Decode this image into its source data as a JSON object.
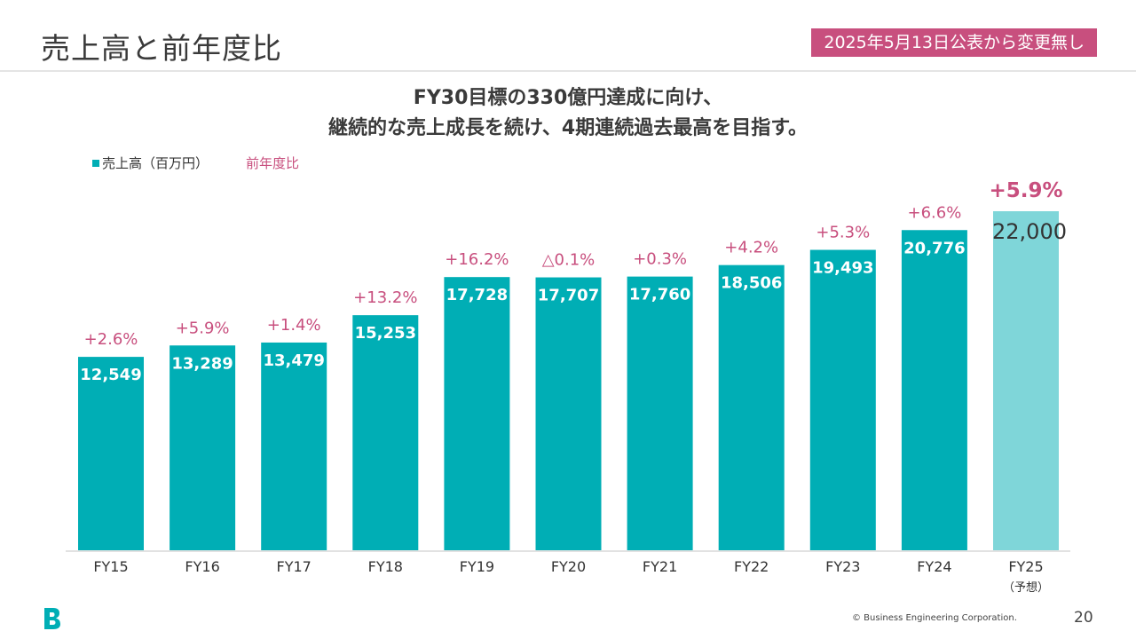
{
  "header": {
    "title": "売上高と前年度比",
    "notice": "2025年5月13日公表から変更無し"
  },
  "headline": {
    "line1": "FY30目標の330億円達成に向け、",
    "line2": "継続的な売上成長を続け、4期連続過去最高を目指す。"
  },
  "legend": {
    "sales_label": "売上高（百万円）",
    "yoy_label": "前年度比"
  },
  "colors": {
    "bar": "#00aeb5",
    "forecast_bar": "#7fd6d9",
    "yoy_text": "#c84f7e",
    "notice_bg": "#c84f7e"
  },
  "chart_data": {
    "type": "bar",
    "categories": [
      "FY15",
      "FY16",
      "FY17",
      "FY18",
      "FY19",
      "FY20",
      "FY21",
      "FY22",
      "FY23",
      "FY24",
      "FY25"
    ],
    "category_sublabels": [
      "",
      "",
      "",
      "",
      "",
      "",
      "",
      "",
      "",
      "",
      "（予想）"
    ],
    "series": [
      {
        "name": "売上高（百万円）",
        "values": [
          12549,
          13289,
          13479,
          15253,
          17728,
          17707,
          17760,
          18506,
          19493,
          20776,
          22000
        ],
        "value_labels": [
          "12,549",
          "13,289",
          "13,479",
          "15,253",
          "17,728",
          "17,707",
          "17,760",
          "18,506",
          "19,493",
          "20,776",
          "22,000"
        ]
      }
    ],
    "yoy_labels": [
      "+2.6%",
      "+5.9%",
      "+1.4%",
      "+13.2%",
      "+16.2%",
      "△0.1%",
      "+0.3%",
      "+4.2%",
      "+5.3%",
      "+6.6%",
      "+5.9%"
    ],
    "forecast_index": 10,
    "ylim": [
      0,
      22000
    ],
    "grid": false,
    "legend_position": "top-left"
  },
  "footer": {
    "copyright": "© Business Engineering Corporation.",
    "page_number": "20"
  }
}
